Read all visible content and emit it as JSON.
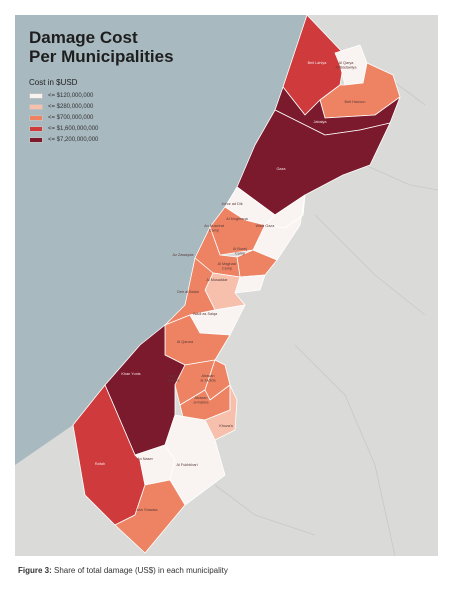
{
  "title": {
    "line1": "Damage Cost",
    "line2": "Per Municipalities"
  },
  "legend": {
    "title": "Cost in $USD",
    "items": [
      {
        "label": "<= $120,000,000",
        "color": "#f9f4f2"
      },
      {
        "label": "<= $280,000,000",
        "color": "#f6c0ad"
      },
      {
        "label": "<= $700,000,000",
        "color": "#ed8363"
      },
      {
        "label": "<= $1,600,000,000",
        "color": "#cf3b3d"
      },
      {
        "label": "<= $7,200,000,000",
        "color": "#7c1a2d"
      }
    ]
  },
  "colors": {
    "sea": "#a8b9c0",
    "land": "#dadad8",
    "border": "#ffffff"
  },
  "municipalities": [
    {
      "name": "Beit Lahiya",
      "tier": 3
    },
    {
      "name": "Al Qarya Al Badawiya",
      "tier": 0
    },
    {
      "name": "Beit Hanoun",
      "tier": 2
    },
    {
      "name": "Jabalya",
      "tier": 4
    },
    {
      "name": "Gaza",
      "tier": 4
    },
    {
      "name": "Juhor ad Dik",
      "tier": 0
    },
    {
      "name": "Al Mughraqa",
      "tier": 0
    },
    {
      "name": "Wadi Gaza",
      "tier": 0
    },
    {
      "name": "An Nuseirat Camp",
      "tier": 2
    },
    {
      "name": "Al Bureij Camp",
      "tier": 2
    },
    {
      "name": "Az Zawayda",
      "tier": 2
    },
    {
      "name": "Al Maghazi Camp",
      "tier": 0
    },
    {
      "name": "Al Musaddar",
      "tier": 1
    },
    {
      "name": "Deir al Balah",
      "tier": 2
    },
    {
      "name": "Wadi as Salqa",
      "tier": 0
    },
    {
      "name": "Al Qarara",
      "tier": 2
    },
    {
      "name": "Khan Yunis",
      "tier": 4
    },
    {
      "name": "Bani Suheila",
      "tier": 2
    },
    {
      "name": "Abasan al Jadida",
      "tier": 2
    },
    {
      "name": "Abasan al Kabira",
      "tier": 2
    },
    {
      "name": "Khuza'a",
      "tier": 1
    },
    {
      "name": "Rafah",
      "tier": 3
    },
    {
      "name": "An Naser",
      "tier": 0
    },
    {
      "name": "Al Fukhkhari",
      "tier": 0
    },
    {
      "name": "Ash Shawka",
      "tier": 2
    }
  ],
  "caption": {
    "label": "Figure 3:",
    "text": " Share of total damage (US$) in each municipality"
  }
}
